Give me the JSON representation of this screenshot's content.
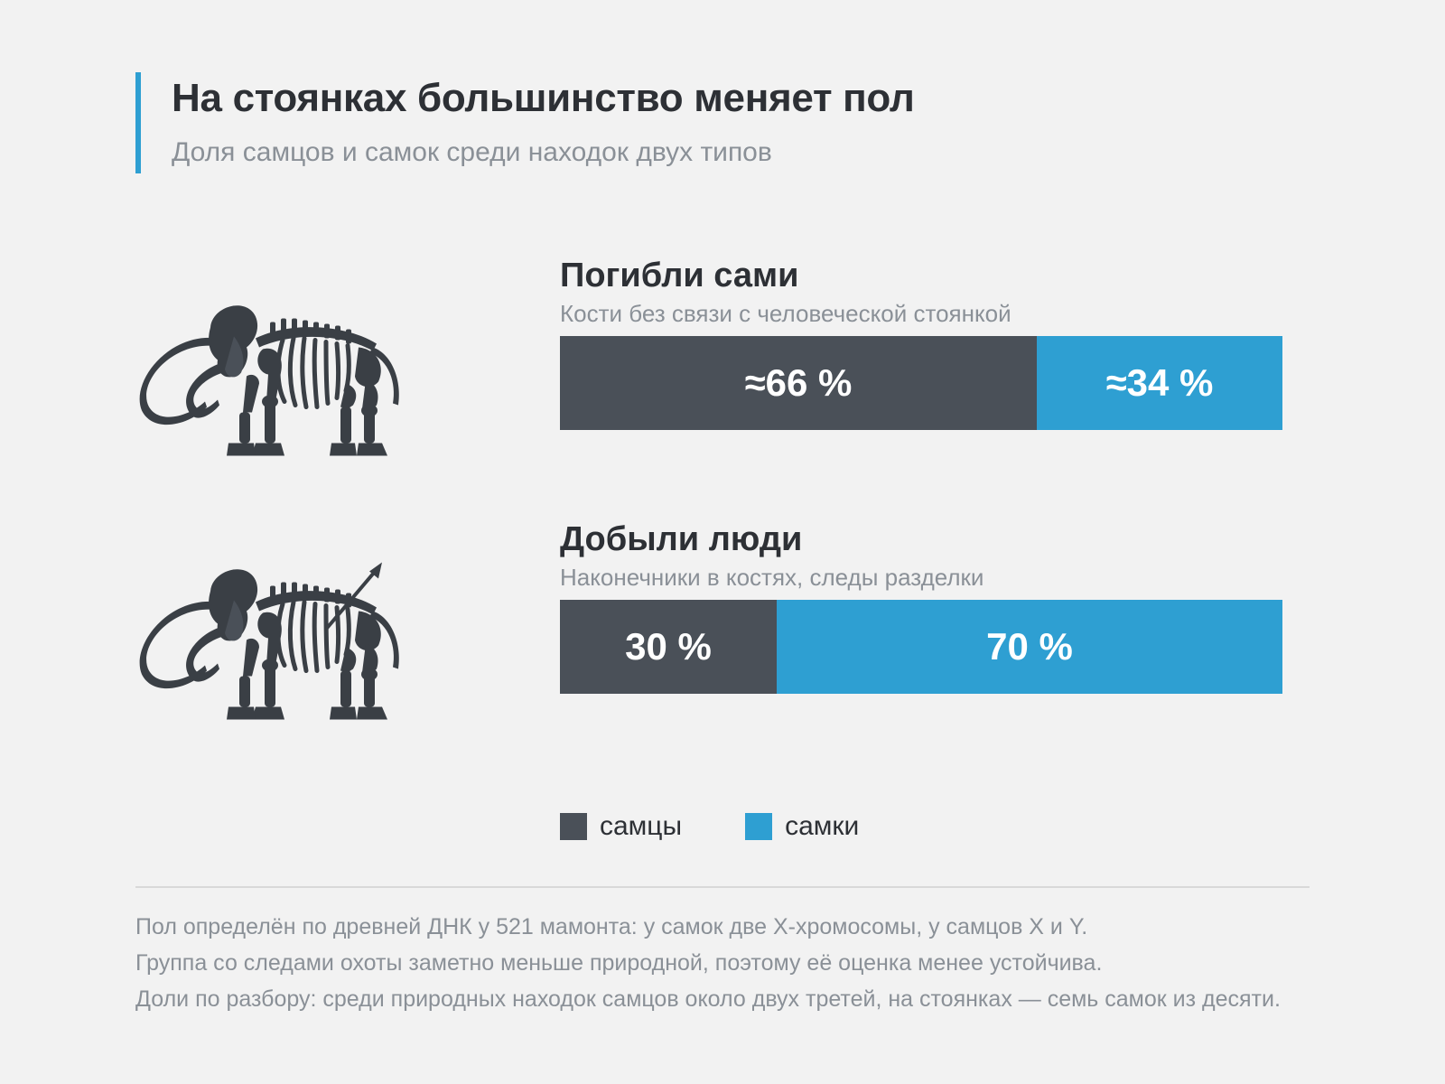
{
  "header": {
    "title": "На стоянках большинство меняет пол",
    "subtitle": "Доля самцов и самок среди находок двух типов"
  },
  "chart_data": {
    "type": "bar",
    "stacked": true,
    "orientation": "horizontal",
    "categories": [
      "Погибли сами",
      "Добыли люди"
    ],
    "category_descriptions": [
      "Кости без связи с человеческой стоянкой",
      "Наконечники в костях, следы разделки"
    ],
    "series": [
      {
        "name": "самцы",
        "values": [
          66,
          30
        ],
        "labels": [
          "≈66 %",
          "30 %"
        ],
        "color": "#4a5058"
      },
      {
        "name": "самки",
        "values": [
          34,
          70
        ],
        "labels": [
          "≈34 %",
          "70 %"
        ],
        "color": "#2e9fd2"
      }
    ],
    "xlim": [
      0,
      100
    ],
    "legend": "bottom",
    "grid": false
  },
  "groups": [
    {
      "title": "Погибли сами",
      "subtitle": "Кости без связи с человеческой стоянкой",
      "icon": "mammoth-skeleton-icon"
    },
    {
      "title": "Добыли люди",
      "subtitle": "Наконечники в костях, следы разделки",
      "icon": "mammoth-skeleton-spear-icon"
    }
  ],
  "legend": [
    {
      "label": "самцы",
      "color": "#4a5058"
    },
    {
      "label": "самки",
      "color": "#2e9fd2"
    }
  ],
  "notes": [
    "Пол определён по древней ДНК у 521 мамонта: у самок две X-хромосомы, у самцов X и Y.",
    "Группа со следами охоты заметно меньше природной, поэтому её оценка менее устойчива.",
    "Доли по разбору: среди природных находок самцов около двух третей, на стоянках — семь самок из десяти."
  ],
  "colors": {
    "male": "#4a5058",
    "female": "#2e9fd2",
    "accent": "#2e9fd2"
  }
}
